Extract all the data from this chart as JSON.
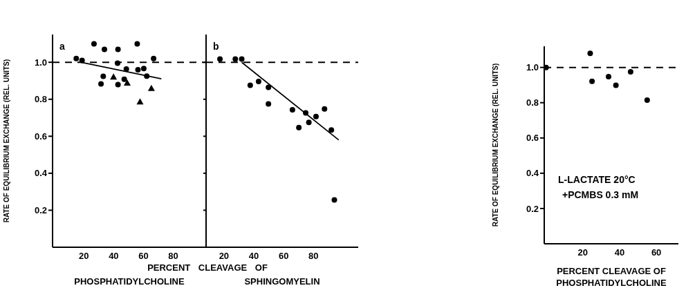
{
  "chart_data": [
    {
      "type": "scatter",
      "title": "a",
      "xlabel": "PHOSPHATIDYLCHOLINE",
      "ylabel": "RATE OF EQUILIBRIUM EXCHANGE (REL. UNITS)",
      "annotations": [
        "PERCENT CLEAVAGE OF"
      ],
      "xlim": [
        -1,
        102
      ],
      "xticks": [
        20,
        40,
        60,
        80
      ],
      "ylim": [
        0,
        1.15
      ],
      "yticks": [
        0.2,
        0.4,
        0.6,
        0.8,
        {
          "value": 1,
          "label": "1.0"
        }
      ],
      "grid": false,
      "legend": false,
      "series": [
        {
          "color": "#000000",
          "marker": "circle",
          "x": [
            26.8,
            33.8,
            42.9,
            18.8,
            42.6,
            48.5,
            56.3,
            60.2,
            66.8,
            33,
            31.5,
            42.9,
            47.1,
            62.2
          ],
          "values": [
            1.1,
            1.07,
            1.07,
            1.01,
            0.995,
            0.963,
            0.96,
            0.966,
            1.02,
            0.924,
            0.883,
            0.879,
            0.908,
            0.925
          ]
        },
        {
          "color": "#000000",
          "marker": "circle",
          "x": [
            14.9,
            55.8
          ],
          "values": [
            1.02,
            1.1
          ]
        },
        {
          "color": "#000000",
          "marker": "triangle",
          "x": [
            39.9,
            49.1,
            57.7,
            65.3
          ],
          "values": [
            0.921,
            0.889,
            0.787,
            0.86
          ]
        },
        {
          "type": "line",
          "color": "#000000",
          "marker": "none",
          "line_style": "solid",
          "x": [
            18,
            72
          ],
          "values": [
            1.0,
            0.911
          ]
        }
      ],
      "ref_lines": [
        {
          "axis": "y",
          "value": 1,
          "line_style": "dashed",
          "color": "#000000"
        }
      ]
    },
    {
      "type": "scatter",
      "title": "b",
      "xlabel": "SPHINGOMYELIN",
      "xlim": [
        8,
        110
      ],
      "xticks": [
        20,
        40,
        60,
        80
      ],
      "ylim": [
        0,
        1.15
      ],
      "yticks": [
        0.2,
        0.4,
        0.6,
        0.8,
        1
      ],
      "tick_labels": "x",
      "grid": false,
      "legend": false,
      "series": [
        {
          "color": "#000000",
          "marker": "circle",
          "x": [
            17.3,
            27.6,
            31.9,
            37.6,
            43.2,
            49.8,
            49.8,
            65.9,
            70.2,
            74.8,
            76.9,
            81.7,
            87.4,
            92,
            94
          ],
          "values": [
            1.017,
            1.017,
            1.017,
            0.876,
            0.896,
            0.864,
            0.775,
            0.743,
            0.647,
            0.726,
            0.675,
            0.707,
            0.748,
            0.634,
            0.256
          ]
        },
        {
          "type": "line",
          "color": "#000000",
          "marker": "none",
          "line_style": "solid",
          "x": [
            31.9,
            96.9
          ],
          "values": [
            1.0,
            0.58
          ]
        }
      ],
      "ref_lines": [
        {
          "axis": "y",
          "value": 1,
          "line_style": "dashed",
          "color": "#000000"
        }
      ]
    },
    {
      "type": "scatter",
      "xlabel": "PERCENT CLEAVAGE OF PHOSPHATIDYLCHOLINE",
      "ylabel": "RATE OF EQUILIBRIUM EXCHANGE (REL. UNITS)",
      "annotations": [
        "L-LACTATE  20°C",
        "+PCMBS  0.3 mM"
      ],
      "xlim": [
        -1,
        72
      ],
      "xticks": [
        20,
        40,
        60
      ],
      "ylim": [
        0,
        1.12
      ],
      "yticks": [
        0.2,
        0.4,
        0.6,
        0.8,
        {
          "value": 1,
          "label": "1.0"
        }
      ],
      "grid": false,
      "legend": false,
      "series": [
        {
          "color": "#000000",
          "marker": "circle",
          "x": [
            0,
            24,
            25,
            34,
            38,
            46,
            55
          ],
          "values": [
            1.0,
            1.08,
            0.921,
            0.948,
            0.899,
            0.975,
            0.815
          ]
        }
      ],
      "ref_lines": [
        {
          "axis": "y",
          "value": 1,
          "line_style": "dashed",
          "color": "#000000"
        }
      ]
    }
  ]
}
